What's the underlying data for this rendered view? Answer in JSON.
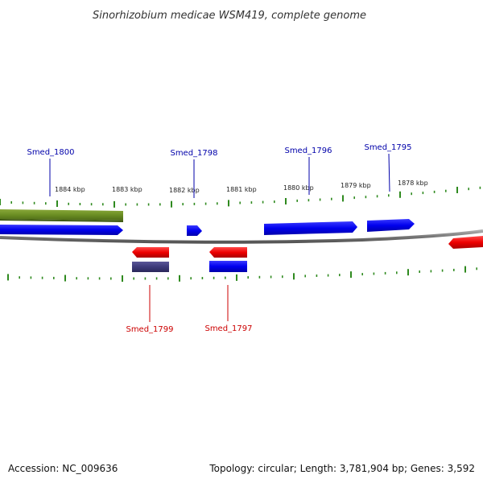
{
  "title": "Sinorhizobium medicae WSM419, complete genome",
  "footer": {
    "accession": "Accession: NC_009636",
    "summary": "Topology: circular; Length: 3,781,904 bp; Genes: 3,592"
  },
  "colors": {
    "forward_gene": "#0000ee",
    "reverse_gene": "#ee0000",
    "rna_feature": "#6b8e23",
    "reverse_secondary": "#3d3a7a",
    "backbone": "#888888",
    "tick": "#2f8a1f",
    "forward_label": "#0000aa",
    "reverse_label": "#cc0000"
  },
  "scale": {
    "kbp_labels": [
      "1884 kbp",
      "1883 kbp",
      "1882 kbp",
      "1881 kbp",
      "1880 kbp",
      "1879 kbp",
      "1878 kbp"
    ]
  },
  "genes_top": [
    {
      "name": "Smed_1800",
      "strand": "+"
    },
    {
      "name": "Smed_1798",
      "strand": "+"
    },
    {
      "name": "Smed_1796",
      "strand": "+"
    },
    {
      "name": "Smed_1795",
      "strand": "+"
    }
  ],
  "genes_bottom": [
    {
      "name": "Smed_1799",
      "strand": "-"
    },
    {
      "name": "Smed_1797",
      "strand": "-"
    }
  ]
}
